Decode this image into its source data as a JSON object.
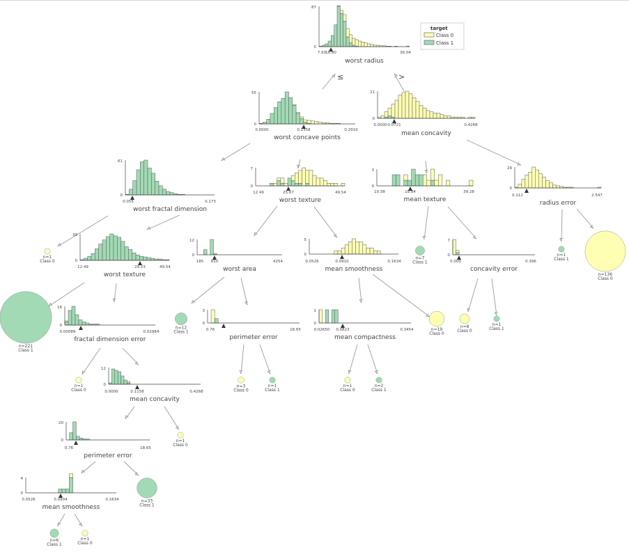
{
  "colors": {
    "class0": "#ffffb3",
    "class1": "#a1dab4",
    "edge": "#9a9a9a",
    "axis": "#444444",
    "bar_stroke": "#555555"
  },
  "legend": {
    "title": "target",
    "items": [
      "Class 0",
      "Class 1"
    ]
  },
  "edge_labels": {
    "left": "≤",
    "right": ">"
  },
  "nodes": [
    {
      "id": "n0",
      "feature": "worst radius",
      "threshold": "16.80",
      "min": "7.93",
      "max": "36.04",
      "ymax": "87",
      "class1": [
        1,
        3,
        6,
        12,
        24,
        47,
        87,
        72,
        55,
        21,
        8,
        3,
        1,
        0,
        0,
        0,
        0,
        0,
        0,
        0,
        0,
        0,
        0,
        0,
        0,
        0,
        0,
        0,
        0,
        0
      ],
      "class0": [
        0,
        0,
        0,
        0,
        0,
        0,
        1,
        6,
        14,
        18,
        18,
        15,
        14,
        12,
        10,
        8,
        6,
        5,
        3,
        3,
        2,
        2,
        1,
        1,
        0,
        1,
        0,
        0,
        0,
        1
      ]
    },
    {
      "id": "n1",
      "feature": "worst concave points",
      "threshold": "0.1358",
      "min": "0.0000",
      "max": "0.2910",
      "ymax": "55",
      "class1": [
        1,
        3,
        8,
        18,
        28,
        38,
        44,
        55,
        45,
        32,
        18,
        9,
        3,
        1,
        0,
        0,
        0,
        0,
        0,
        0,
        0,
        0,
        0,
        0,
        0,
        0
      ],
      "class0": [
        0,
        0,
        0,
        0,
        0,
        0,
        0,
        0,
        0,
        1,
        2,
        3,
        4,
        5,
        5,
        4,
        3,
        2,
        2,
        1,
        1,
        1,
        0,
        0,
        0,
        0
      ]
    },
    {
      "id": "n2",
      "feature": "mean concavity",
      "threshold": "0.0721",
      "min": "0.0000",
      "max": "0.4268",
      "ymax": "21",
      "class1": [
        0,
        0,
        1,
        2,
        1,
        0,
        0,
        0,
        0,
        0,
        0,
        0,
        0,
        0,
        0,
        0,
        0,
        0,
        0,
        0,
        0,
        0,
        0,
        0,
        0,
        0,
        0,
        0
      ],
      "class0": [
        1,
        2,
        4,
        6,
        10,
        14,
        18,
        20,
        21,
        19,
        16,
        13,
        10,
        8,
        6,
        5,
        4,
        4,
        3,
        2,
        2,
        1,
        1,
        1,
        1,
        0,
        1,
        1
      ]
    },
    {
      "id": "n3",
      "feature": "worst fractal dimension",
      "threshold": "0.055",
      "min": "0.055",
      "max": "0.173",
      "ymax": "61",
      "class1": [
        1,
        10,
        25,
        44,
        58,
        61,
        47,
        38,
        24,
        16,
        10,
        6,
        4,
        2,
        1,
        1,
        0,
        0,
        0,
        0,
        0,
        0,
        0,
        0
      ],
      "class0": [
        0,
        0,
        0,
        0,
        0,
        0,
        0,
        0,
        0,
        0,
        0,
        0,
        0,
        0,
        0,
        0,
        0,
        0,
        0,
        0,
        0,
        0,
        0,
        0
      ]
    },
    {
      "id": "n4",
      "feature": "worst texture",
      "threshold": "25.67",
      "min": "12.49",
      "max": "49.54",
      "ymax": "7",
      "class1": [
        0,
        0,
        0,
        0,
        1,
        0,
        2,
        1,
        0,
        3,
        2,
        1,
        1,
        0,
        1,
        0,
        0,
        0,
        0,
        0,
        0,
        0,
        0,
        0,
        0
      ],
      "class0": [
        0,
        0,
        0,
        0,
        0,
        1,
        1,
        2,
        1,
        0,
        2,
        4,
        5,
        7,
        5,
        6,
        4,
        3,
        3,
        2,
        1,
        1,
        1,
        0,
        1
      ]
    },
    {
      "id": "n5",
      "feature": "mean texture",
      "threshold": "18.84",
      "min": "10.38",
      "max": "39.28",
      "ymax": "3",
      "class1": [
        0,
        0,
        0,
        0,
        2,
        2,
        0,
        1,
        1,
        3,
        2,
        2,
        0,
        0,
        1,
        0,
        0,
        0,
        0,
        0,
        0,
        0,
        0,
        0,
        0
      ],
      "class0": [
        0,
        0,
        0,
        0,
        0,
        0,
        0,
        1,
        0,
        0,
        0,
        0,
        2,
        1,
        2,
        1,
        2,
        0,
        1,
        0,
        0,
        0,
        0,
        0,
        1
      ]
    },
    {
      "id": "n6",
      "feature": "radius error",
      "threshold": "0.112",
      "min": "0.112",
      "max": "2.547",
      "ymax": "29",
      "class1": [
        0,
        0,
        0,
        0,
        0,
        0,
        0,
        0,
        0,
        0,
        0,
        0,
        0,
        0,
        0,
        0,
        0,
        0,
        0,
        0,
        0,
        0,
        0,
        0,
        0
      ],
      "class0": [
        1,
        5,
        12,
        18,
        22,
        29,
        25,
        20,
        15,
        10,
        7,
        4,
        3,
        2,
        1,
        1,
        1,
        0,
        0,
        0,
        0,
        0,
        0,
        0,
        1
      ]
    },
    {
      "id": "n7",
      "feature": "worst texture",
      "threshold": "29.23",
      "min": "12.49",
      "max": "49.54",
      "ymax": "39",
      "class1": [
        1,
        3,
        6,
        10,
        17,
        24,
        30,
        35,
        39,
        36,
        34,
        28,
        20,
        16,
        11,
        8,
        6,
        5,
        4,
        3,
        2,
        2,
        1,
        1
      ],
      "class0": [
        0,
        0,
        0,
        0,
        0,
        0,
        0,
        0,
        0,
        0,
        0,
        0,
        0,
        0,
        0,
        0,
        0,
        0,
        0,
        0,
        0,
        0,
        0,
        0
      ]
    },
    {
      "id": "n8",
      "feature": "worst area",
      "threshold": "810",
      "min": "185",
      "max": "4254",
      "ymax": "12",
      "class1": [
        0,
        0,
        4,
        0,
        12,
        1,
        0,
        0,
        0,
        0,
        0,
        0,
        0,
        0,
        0,
        0,
        0,
        0,
        0,
        0,
        0,
        0,
        0,
        0,
        0,
        0
      ],
      "class0": [
        0,
        0,
        0,
        0,
        0,
        0,
        0,
        0,
        0,
        0,
        0,
        0,
        0,
        0,
        0,
        0,
        0,
        0,
        0,
        0,
        0,
        0,
        0,
        0,
        0,
        0
      ]
    },
    {
      "id": "n9",
      "feature": "mean smoothness",
      "threshold": "0.0910",
      "min": "0.0526",
      "max": "0.1634",
      "ymax": "5",
      "class1": [
        0,
        0,
        0,
        0,
        0,
        0,
        0,
        0,
        0,
        0,
        0,
        0,
        0,
        0,
        0,
        0,
        0,
        0,
        0,
        0,
        0,
        0,
        0,
        0,
        0
      ],
      "class0": [
        0,
        0,
        0,
        0,
        0,
        0,
        0,
        1,
        1,
        2,
        3,
        4,
        5,
        4,
        4,
        3,
        2,
        2,
        1,
        1,
        0,
        0,
        0,
        0,
        0
      ]
    },
    {
      "id": "n10",
      "feature": "concavity error",
      "threshold": "0.000",
      "min": "0.000",
      "max": "0.396",
      "ymax": "7",
      "class1": [
        0,
        1,
        0,
        0,
        0,
        0,
        0,
        0,
        0,
        0,
        0,
        0,
        0,
        0,
        0,
        0,
        0,
        0,
        0,
        0,
        0,
        0,
        0,
        0,
        0,
        0
      ],
      "class0": [
        7,
        1,
        0,
        0,
        0,
        0,
        0,
        0,
        0,
        0,
        0,
        0,
        0,
        0,
        0,
        0,
        0,
        0,
        0,
        0,
        0,
        0,
        0,
        0,
        0,
        0
      ]
    },
    {
      "id": "n11",
      "feature": "fractal dimension error",
      "threshold": "0.00089",
      "min": "0.00089",
      "max": "0.02984",
      "ymax": "18",
      "class1": [
        3,
        14,
        18,
        10,
        5,
        3,
        2,
        1,
        1,
        1,
        0,
        0,
        0,
        0,
        0,
        0,
        0,
        0,
        0,
        0,
        0,
        0,
        0,
        0,
        0,
        0
      ],
      "class0": [
        1,
        0,
        0,
        0,
        0,
        0,
        0,
        0,
        0,
        0,
        0,
        0,
        0,
        0,
        0,
        0,
        0,
        0,
        0,
        0,
        0,
        0,
        0,
        0,
        0,
        0
      ]
    },
    {
      "id": "n12",
      "feature": "perimeter error",
      "threshold": "0.76",
      "min": "0.76",
      "max": "18.65",
      "ymax": "3",
      "class1": [
        0,
        0,
        1,
        0,
        0,
        0,
        0,
        0,
        0,
        0,
        0,
        0,
        0,
        0,
        0,
        0,
        0,
        0,
        0,
        0,
        0,
        0,
        0,
        0,
        0,
        0
      ],
      "class0": [
        0,
        3,
        0,
        0,
        0,
        0,
        0,
        0,
        0,
        0,
        0,
        0,
        0,
        0,
        0,
        0,
        0,
        0,
        0,
        0,
        0,
        0,
        0,
        0,
        0,
        0
      ]
    },
    {
      "id": "n13",
      "feature": "mean compactness",
      "threshold": "0.0823",
      "min": "0.02650",
      "max": "0.3454",
      "ymax": "1",
      "class1": [
        0,
        0,
        1,
        0,
        1,
        1,
        0,
        0,
        0,
        0,
        0,
        0,
        0,
        0,
        0,
        0,
        0,
        0,
        0,
        0,
        0,
        0,
        0,
        0,
        0,
        0,
        0,
        0,
        0
      ],
      "class0": [
        1,
        0,
        0,
        0,
        0,
        0,
        0,
        0,
        0,
        0,
        0,
        0,
        0,
        0,
        0,
        0,
        0,
        0,
        0,
        0,
        0,
        0,
        0,
        0,
        0,
        0,
        0,
        0,
        0
      ]
    },
    {
      "id": "n14",
      "feature": "mean concavity",
      "threshold": "0.1158",
      "min": "0.0000",
      "max": "0.4268",
      "ymax": "12",
      "class1": [
        1,
        11,
        10,
        9,
        6,
        3,
        1,
        0,
        0,
        0,
        0,
        0,
        0,
        0,
        0,
        0,
        0,
        0,
        0,
        0,
        0,
        0,
        0,
        0,
        0,
        0,
        0,
        0,
        0,
        0
      ],
      "class0": [
        0,
        0,
        0,
        0,
        0,
        0,
        1,
        0,
        0,
        0,
        0,
        0,
        0,
        0,
        0,
        0,
        0,
        0,
        0,
        0,
        0,
        0,
        0,
        0,
        0,
        0,
        0,
        0,
        0,
        0
      ]
    },
    {
      "id": "n15",
      "feature": "perimeter error",
      "threshold": "0.76",
      "min": "0.76",
      "max": "18.65",
      "ymax": "20",
      "class1": [
        0,
        8,
        20,
        4,
        2,
        1,
        1,
        0,
        0,
        0,
        0,
        0,
        0,
        0,
        0,
        0,
        0,
        0,
        0,
        0,
        0,
        0,
        0,
        0,
        0
      ],
      "class0": [
        0,
        0,
        0,
        0,
        0,
        0,
        0,
        0,
        0,
        0,
        0,
        0,
        0,
        0,
        0,
        0,
        0,
        0,
        0,
        0,
        0,
        0,
        0,
        0,
        0
      ]
    },
    {
      "id": "n16",
      "feature": "mean smoothness",
      "threshold": "0.0904",
      "min": "0.0526",
      "max": "0.1634",
      "ymax": "4",
      "class1": [
        0,
        0,
        0,
        0,
        0,
        0,
        0,
        0,
        0,
        1,
        1,
        1,
        4,
        0,
        0,
        0,
        0,
        0,
        0,
        0,
        0,
        0,
        0,
        0,
        0
      ],
      "class0": [
        0,
        0,
        0,
        0,
        0,
        0,
        0,
        0,
        0,
        0,
        0,
        0,
        1,
        0,
        0,
        0,
        0,
        0,
        0,
        0,
        0,
        0,
        0,
        0,
        0
      ]
    }
  ],
  "leaves": [
    {
      "id": "l1",
      "n": "n=1",
      "label": "Class 0",
      "cls": 0,
      "count": 1
    },
    {
      "id": "l2",
      "n": "n=221",
      "label": "Class 1",
      "cls": 1,
      "count": 221
    },
    {
      "id": "l3",
      "n": "n=12",
      "label": "Class 1",
      "cls": 1,
      "count": 12
    },
    {
      "id": "l4",
      "n": "n=7",
      "label": "Class 1",
      "cls": 1,
      "count": 7
    },
    {
      "id": "l5",
      "n": "n=1",
      "label": "Class 1",
      "cls": 1,
      "count": 1
    },
    {
      "id": "l6",
      "n": "n=136",
      "label": "Class 0",
      "cls": 0,
      "count": 136
    },
    {
      "id": "l7",
      "n": "n=19",
      "label": "Class 0",
      "cls": 0,
      "count": 19
    },
    {
      "id": "l8",
      "n": "n=8",
      "label": "Class 0",
      "cls": 0,
      "count": 8
    },
    {
      "id": "l9",
      "n": "n=1",
      "label": "Class 1",
      "cls": 1,
      "count": 1
    },
    {
      "id": "l10",
      "n": "n=1",
      "label": "Class 0",
      "cls": 0,
      "count": 1
    },
    {
      "id": "l11",
      "n": "n=3",
      "label": "Class 0",
      "cls": 0,
      "count": 3
    },
    {
      "id": "l12",
      "n": "n=1",
      "label": "Class 1",
      "cls": 1,
      "count": 1
    },
    {
      "id": "l13",
      "n": "n=1",
      "label": "Class 0",
      "cls": 0,
      "count": 1
    },
    {
      "id": "l14",
      "n": "n=2",
      "label": "Class 1",
      "cls": 1,
      "count": 2
    },
    {
      "id": "l15",
      "n": "n=1",
      "label": "Class 0",
      "cls": 0,
      "count": 1
    },
    {
      "id": "l16",
      "n": "n=33",
      "label": "Class 1",
      "cls": 1,
      "count": 33
    },
    {
      "id": "l17",
      "n": "n=6",
      "label": "Class 1",
      "cls": 1,
      "count": 6
    },
    {
      "id": "l18",
      "n": "n=1",
      "label": "Class 0",
      "cls": 0,
      "count": 1
    }
  ]
}
